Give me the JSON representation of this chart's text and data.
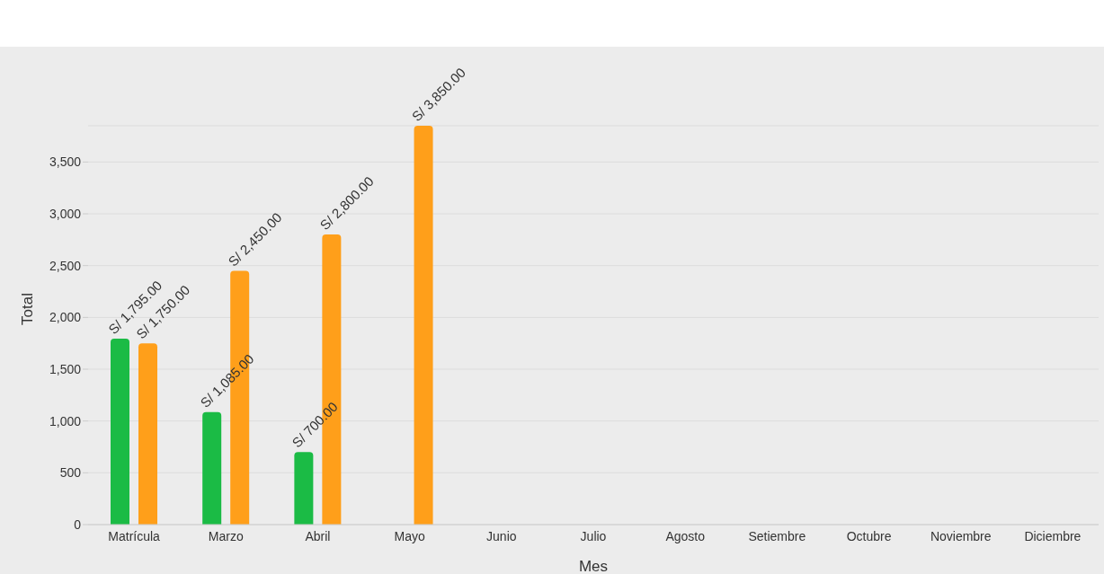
{
  "chart_data": {
    "type": "bar",
    "xlabel": "Mes",
    "ylabel": "Total",
    "categories": [
      "Matrícula",
      "Marzo",
      "Abril",
      "Mayo",
      "Junio",
      "Julio",
      "Agosto",
      "Setiembre",
      "Octubre",
      "Noviembre",
      "Diciembre"
    ],
    "series": [
      {
        "color": "#1bbb45",
        "values": [
          1795,
          1085,
          700,
          null,
          null,
          null,
          null,
          null,
          null,
          null,
          null
        ],
        "value_labels": [
          "S/ 1,795.00",
          "S/ 1,085.00",
          "S/ 700.00",
          null,
          null,
          null,
          null,
          null,
          null,
          null,
          null
        ]
      },
      {
        "color": "#ff9f1a",
        "values": [
          1750,
          2450,
          2800,
          3850,
          null,
          null,
          null,
          null,
          null,
          null,
          null
        ],
        "value_labels": [
          "S/ 1,750.00",
          "S/ 2,450.00",
          "S/ 2,800.00",
          "S/ 3,850.00",
          null,
          null,
          null,
          null,
          null,
          null,
          null
        ]
      }
    ],
    "ylim": [
      0,
      3850
    ],
    "yticks": [
      0,
      500,
      {
        "value": 1000,
        "label": "1,000"
      },
      {
        "value": 1500,
        "label": "1,500"
      },
      {
        "value": 2000,
        "label": "2,000"
      },
      {
        "value": 2500,
        "label": "2,500"
      },
      {
        "value": 3000,
        "label": "3,000"
      },
      {
        "value": 3500,
        "label": "3,500"
      }
    ],
    "grid": "y",
    "legend": false
  }
}
